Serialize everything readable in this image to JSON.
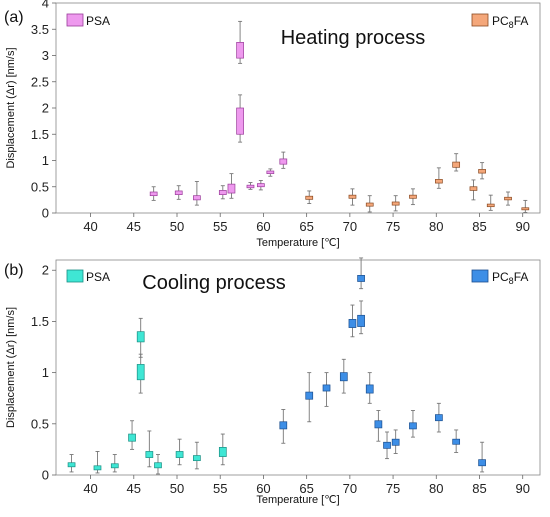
{
  "chart_data": [
    {
      "type": "box",
      "panel_label": "(a)",
      "title": "Heating process",
      "xlabel": "Temperature [℃]",
      "ylabel": "Displacement (Δr) [nm/s]",
      "xlim": [
        36,
        92
      ],
      "ylim": [
        0,
        4
      ],
      "xticks": [
        40,
        45,
        50,
        55,
        60,
        65,
        70,
        75,
        80,
        85,
        90
      ],
      "yticks": [
        0,
        0.5,
        1,
        1.5,
        2,
        2.5,
        3,
        3.5,
        4
      ],
      "ytick_labels": [
        "0",
        "0.5",
        "1",
        "1.5",
        "2",
        "2.5",
        "3",
        "3.5",
        "4"
      ],
      "legend": {
        "left": "PSA",
        "right_base": "PC",
        "right_sub": "8",
        "right_tail": "FA"
      },
      "series": [
        {
          "name": "PSA",
          "color": "#ee99ee",
          "stroke": "#9a3c9a",
          "boxes": [
            {
              "x": 47.3,
              "q1": 0.33,
              "q3": 0.4,
              "lo": 0.24,
              "hi": 0.5
            },
            {
              "x": 50.2,
              "q1": 0.35,
              "q3": 0.42,
              "lo": 0.26,
              "hi": 0.52
            },
            {
              "x": 52.3,
              "q1": 0.25,
              "q3": 0.33,
              "lo": 0.15,
              "hi": 0.6
            },
            {
              "x": 55.3,
              "q1": 0.35,
              "q3": 0.43,
              "lo": 0.27,
              "hi": 0.52
            },
            {
              "x": 56.3,
              "q1": 0.38,
              "q3": 0.55,
              "lo": 0.28,
              "hi": 0.75
            },
            {
              "x": 57.3,
              "q1": 1.5,
              "q3": 2.0,
              "lo": 1.35,
              "hi": 2.25
            },
            {
              "x": 57.3,
              "q1": 2.95,
              "q3": 3.25,
              "lo": 2.85,
              "hi": 3.65
            },
            {
              "x": 58.5,
              "q1": 0.48,
              "q3": 0.53,
              "lo": 0.45,
              "hi": 0.58
            },
            {
              "x": 59.7,
              "q1": 0.5,
              "q3": 0.56,
              "lo": 0.44,
              "hi": 0.62
            },
            {
              "x": 60.8,
              "q1": 0.75,
              "q3": 0.8,
              "lo": 0.7,
              "hi": 0.84
            },
            {
              "x": 62.3,
              "q1": 0.93,
              "q3": 1.03,
              "lo": 0.85,
              "hi": 1.16
            }
          ]
        },
        {
          "name": "PC8FA",
          "color": "#f4a77a",
          "stroke": "#8a4a22",
          "boxes": [
            {
              "x": 65.3,
              "q1": 0.26,
              "q3": 0.32,
              "lo": 0.18,
              "hi": 0.42
            },
            {
              "x": 70.3,
              "q1": 0.28,
              "q3": 0.34,
              "lo": 0.15,
              "hi": 0.46
            },
            {
              "x": 72.3,
              "q1": 0.13,
              "q3": 0.19,
              "lo": 0.02,
              "hi": 0.33
            },
            {
              "x": 75.3,
              "q1": 0.15,
              "q3": 0.21,
              "lo": 0.04,
              "hi": 0.33
            },
            {
              "x": 77.3,
              "q1": 0.28,
              "q3": 0.34,
              "lo": 0.16,
              "hi": 0.46
            },
            {
              "x": 80.3,
              "q1": 0.57,
              "q3": 0.64,
              "lo": 0.47,
              "hi": 0.86
            },
            {
              "x": 82.3,
              "q1": 0.87,
              "q3": 0.97,
              "lo": 0.8,
              "hi": 1.13
            },
            {
              "x": 84.3,
              "q1": 0.43,
              "q3": 0.5,
              "lo": 0.25,
              "hi": 0.63
            },
            {
              "x": 85.3,
              "q1": 0.76,
              "q3": 0.83,
              "lo": 0.65,
              "hi": 0.96
            },
            {
              "x": 86.3,
              "q1": 0.12,
              "q3": 0.17,
              "lo": 0.05,
              "hi": 0.34
            },
            {
              "x": 88.3,
              "q1": 0.25,
              "q3": 0.3,
              "lo": 0.15,
              "hi": 0.4
            },
            {
              "x": 90.3,
              "q1": 0.06,
              "q3": 0.1,
              "lo": 0.01,
              "hi": 0.24
            }
          ]
        }
      ]
    },
    {
      "type": "box",
      "panel_label": "(b)",
      "title": "Cooling process",
      "xlabel": "Temperature [℃]",
      "ylabel": "Displacement (Δr) [nm/s]",
      "xlim": [
        36,
        92
      ],
      "ylim": [
        0,
        2.1
      ],
      "xticks": [
        40,
        45,
        50,
        55,
        60,
        65,
        70,
        75,
        80,
        85,
        90
      ],
      "yticks": [
        0,
        0.5,
        1,
        1.5,
        2
      ],
      "ytick_labels": [
        "0",
        "0.5",
        "1",
        "1.5",
        "2"
      ],
      "legend": {
        "left": "PSA",
        "right_base": "PC",
        "right_sub": "8",
        "right_tail": "FA"
      },
      "series": [
        {
          "name": "PSA",
          "color": "#3fe6d4",
          "stroke": "#1a8f84",
          "boxes": [
            {
              "x": 37.8,
              "q1": 0.08,
              "q3": 0.12,
              "lo": 0.03,
              "hi": 0.2
            },
            {
              "x": 40.8,
              "q1": 0.05,
              "q3": 0.09,
              "lo": 0.02,
              "hi": 0.23
            },
            {
              "x": 42.8,
              "q1": 0.07,
              "q3": 0.11,
              "lo": 0.03,
              "hi": 0.2
            },
            {
              "x": 44.8,
              "q1": 0.33,
              "q3": 0.4,
              "lo": 0.25,
              "hi": 0.53
            },
            {
              "x": 45.8,
              "q1": 1.3,
              "q3": 1.4,
              "lo": 1.15,
              "hi": 1.53
            },
            {
              "x": 45.8,
              "q1": 0.93,
              "q3": 1.08,
              "lo": 0.8,
              "hi": 1.18
            },
            {
              "x": 46.8,
              "q1": 0.17,
              "q3": 0.23,
              "lo": 0.08,
              "hi": 0.43
            },
            {
              "x": 47.8,
              "q1": 0.07,
              "q3": 0.12,
              "lo": 0.01,
              "hi": 0.2
            },
            {
              "x": 50.3,
              "q1": 0.17,
              "q3": 0.23,
              "lo": 0.1,
              "hi": 0.35
            },
            {
              "x": 52.3,
              "q1": 0.14,
              "q3": 0.19,
              "lo": 0.06,
              "hi": 0.32
            },
            {
              "x": 55.3,
              "q1": 0.18,
              "q3": 0.27,
              "lo": 0.1,
              "hi": 0.4
            }
          ]
        },
        {
          "name": "PC8FA",
          "color": "#3d8ee6",
          "stroke": "#1c4f8f",
          "boxes": [
            {
              "x": 62.3,
              "q1": 0.45,
              "q3": 0.52,
              "lo": 0.31,
              "hi": 0.64
            },
            {
              "x": 65.3,
              "q1": 0.74,
              "q3": 0.81,
              "lo": 0.52,
              "hi": 1.0
            },
            {
              "x": 67.3,
              "q1": 0.82,
              "q3": 0.88,
              "lo": 0.67,
              "hi": 1.0
            },
            {
              "x": 69.3,
              "q1": 0.92,
              "q3": 1.0,
              "lo": 0.8,
              "hi": 1.13
            },
            {
              "x": 70.3,
              "q1": 1.44,
              "q3": 1.52,
              "lo": 1.35,
              "hi": 1.66
            },
            {
              "x": 71.3,
              "q1": 1.45,
              "q3": 1.56,
              "lo": 1.38,
              "hi": 1.7
            },
            {
              "x": 71.3,
              "q1": 1.89,
              "q3": 1.95,
              "lo": 1.82,
              "hi": 2.12
            },
            {
              "x": 72.3,
              "q1": 0.8,
              "q3": 0.88,
              "lo": 0.7,
              "hi": 1.0
            },
            {
              "x": 73.3,
              "q1": 0.46,
              "q3": 0.53,
              "lo": 0.33,
              "hi": 0.63
            },
            {
              "x": 74.3,
              "q1": 0.26,
              "q3": 0.32,
              "lo": 0.16,
              "hi": 0.42
            },
            {
              "x": 75.3,
              "q1": 0.29,
              "q3": 0.35,
              "lo": 0.21,
              "hi": 0.44
            },
            {
              "x": 77.3,
              "q1": 0.45,
              "q3": 0.51,
              "lo": 0.37,
              "hi": 0.63
            },
            {
              "x": 80.3,
              "q1": 0.53,
              "q3": 0.59,
              "lo": 0.42,
              "hi": 0.7
            },
            {
              "x": 82.3,
              "q1": 0.3,
              "q3": 0.35,
              "lo": 0.22,
              "hi": 0.44
            },
            {
              "x": 85.3,
              "q1": 0.09,
              "q3": 0.15,
              "lo": 0.03,
              "hi": 0.32
            }
          ]
        }
      ]
    }
  ]
}
